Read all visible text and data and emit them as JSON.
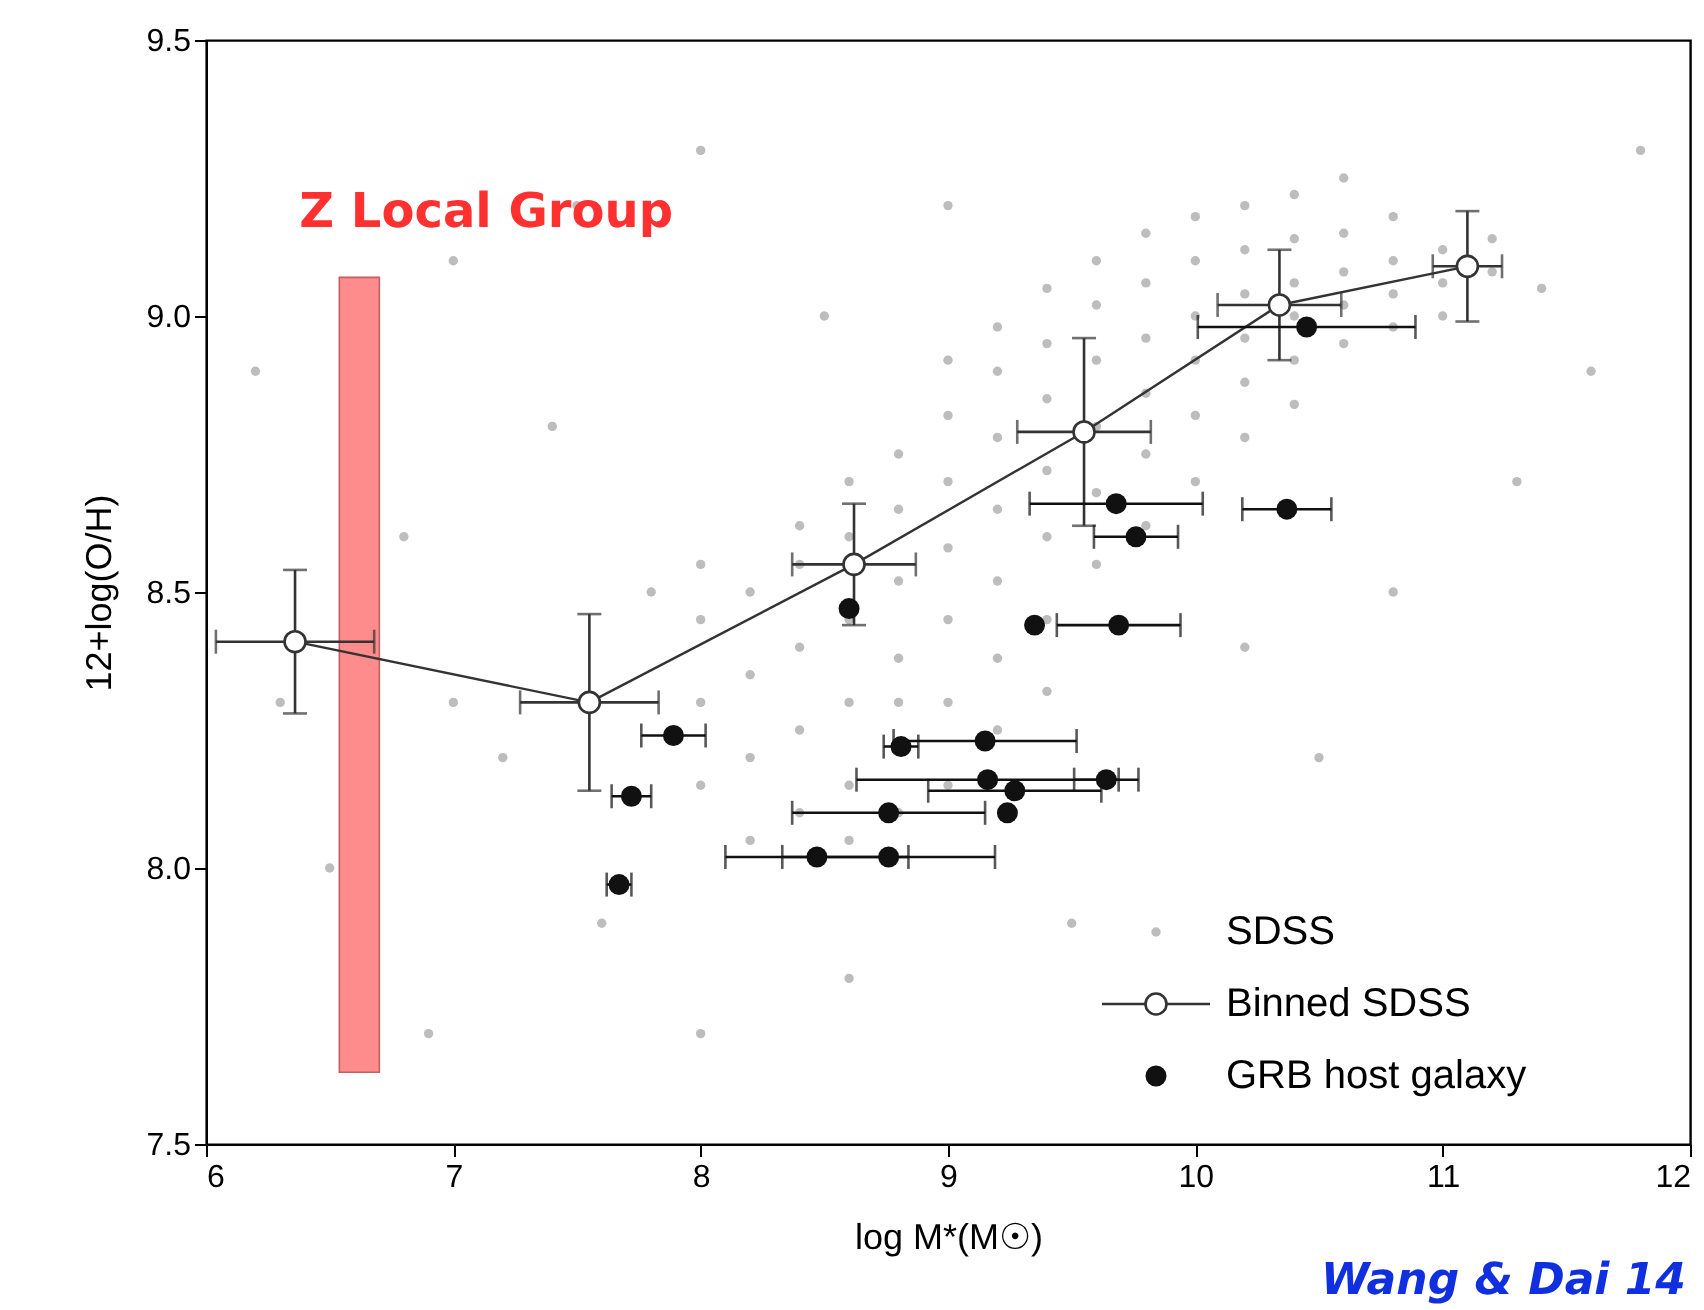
{
  "chart_data": {
    "type": "scatter",
    "xlabel": "log M*(M☉)",
    "ylabel": "12+log(O/H)",
    "xlim": [
      6,
      12
    ],
    "ylim": [
      7.5,
      9.5
    ],
    "xticks": [
      6,
      7,
      8,
      9,
      10,
      11,
      12
    ],
    "yticks": [
      7.5,
      {
        "value": 8,
        "label": "8.0"
      },
      8.5,
      {
        "value": 9,
        "label": "9.0"
      },
      9.5
    ],
    "grid": false,
    "legend": "bottom right",
    "annotations": [
      "Wang & Dai 14"
    ],
    "series": [
      {
        "name": "SDSS",
        "color": "#bdbdbd",
        "marker": "circle",
        "x": [
          8.0,
          8.0,
          8.0,
          8.0,
          8.2,
          8.2,
          8.2,
          8.2,
          8.4,
          8.4,
          8.4,
          8.4,
          8.4,
          8.6,
          8.6,
          8.6,
          8.6,
          8.6,
          8.6,
          8.8,
          8.8,
          8.8,
          8.8,
          8.8,
          8.8,
          9.0,
          9.0,
          9.0,
          9.0,
          9.0,
          9.0,
          9.0,
          9.2,
          9.2,
          9.2,
          9.2,
          9.2,
          9.2,
          9.2,
          9.4,
          9.4,
          9.4,
          9.4,
          9.4,
          9.4,
          9.4,
          9.6,
          9.6,
          9.6,
          9.6,
          9.6,
          9.6,
          9.8,
          9.8,
          9.8,
          9.8,
          9.8,
          9.8,
          10.0,
          10.0,
          10.0,
          10.0,
          10.0,
          10.0,
          10.2,
          10.2,
          10.2,
          10.2,
          10.2,
          10.2,
          10.4,
          10.4,
          10.4,
          10.4,
          10.4,
          10.4,
          10.6,
          10.6,
          10.6,
          10.6,
          10.6,
          10.8,
          10.8,
          10.8,
          10.8,
          11.0,
          11.0,
          11.0,
          11.2,
          11.2,
          11.4,
          6.2,
          6.5,
          6.8,
          7.0,
          7.2,
          7.4,
          7.6,
          7.8,
          7.0,
          6.3,
          7.5,
          8.0,
          8.5,
          11.6,
          11.3,
          10.8,
          10.2,
          8.6,
          9.5,
          6.9,
          8.0,
          9.0,
          11.8,
          10.5
        ],
        "values": [
          8.3,
          8.45,
          8.15,
          8.55,
          8.35,
          8.5,
          8.2,
          8.05,
          8.4,
          8.55,
          8.25,
          8.1,
          8.62,
          8.45,
          8.6,
          8.3,
          8.15,
          8.7,
          8.05,
          8.52,
          8.65,
          8.38,
          8.3,
          8.75,
          8.1,
          8.58,
          8.7,
          8.45,
          8.3,
          8.82,
          8.15,
          8.92,
          8.65,
          8.78,
          8.52,
          8.38,
          8.9,
          8.25,
          8.98,
          8.72,
          8.85,
          8.6,
          8.45,
          8.95,
          8.32,
          9.05,
          8.8,
          8.92,
          8.68,
          8.55,
          9.02,
          9.1,
          8.86,
          8.96,
          8.75,
          8.62,
          9.06,
          9.15,
          8.92,
          9.0,
          8.82,
          8.7,
          9.1,
          9.18,
          8.96,
          9.04,
          8.88,
          8.78,
          9.12,
          9.2,
          9.0,
          9.06,
          8.92,
          8.84,
          9.14,
          9.22,
          9.02,
          9.08,
          8.95,
          9.15,
          9.25,
          9.04,
          9.1,
          8.98,
          9.18,
          9.06,
          9.12,
          9.0,
          9.08,
          9.14,
          9.05,
          8.9,
          8.0,
          8.6,
          9.1,
          8.2,
          8.8,
          7.9,
          8.5,
          8.3,
          8.3,
          9.2,
          9.3,
          9.0,
          8.9,
          8.7,
          8.5,
          8.4,
          7.8,
          7.9,
          7.7,
          7.7,
          9.2,
          9.3,
          8.2
        ]
      },
      {
        "name": "Z Local Group",
        "type": "bar",
        "color": "#ff8c8c",
        "x": [
          6.62
        ],
        "base": [
          7.63
        ],
        "values": [
          1.44
        ]
      },
      {
        "name": "Binned SDSS",
        "type": "line",
        "color": "#333333",
        "marker": "circle",
        "x": [
          6.36,
          7.55,
          8.62,
          9.55,
          10.34,
          11.1
        ],
        "values": [
          8.41,
          8.3,
          8.55,
          8.79,
          9.02,
          9.09
        ],
        "errors": [
          0.13,
          0.16,
          0.11,
          0.17,
          0.1,
          0.1
        ],
        "xerrors": [
          0.32,
          0.28,
          0.25,
          0.27,
          0.25,
          0.14
        ]
      },
      {
        "name": "GRB host galaxy",
        "color": "#111111",
        "marker": "circle",
        "x": [
          8.6,
          9.35,
          9.69,
          7.89,
          7.72,
          7.67,
          8.81,
          9.15,
          9.16,
          9.64,
          9.27,
          8.76,
          9.24,
          8.47,
          8.76,
          10.45,
          9.68,
          9.76,
          10.37
        ],
        "values": [
          8.47,
          8.44,
          8.44,
          8.24,
          8.13,
          7.97,
          8.22,
          8.23,
          8.16,
          8.16,
          8.14,
          8.1,
          8.1,
          8.02,
          8.02,
          8.98,
          8.66,
          8.6,
          8.65
        ],
        "xerrors": [
          null,
          null,
          0.25,
          0.13,
          0.08,
          0.05,
          0.07,
          0.37,
          0.53,
          0.13,
          0.35,
          0.39,
          null,
          0.37,
          0.43,
          0.44,
          0.35,
          0.17,
          0.18
        ]
      }
    ]
  }
}
